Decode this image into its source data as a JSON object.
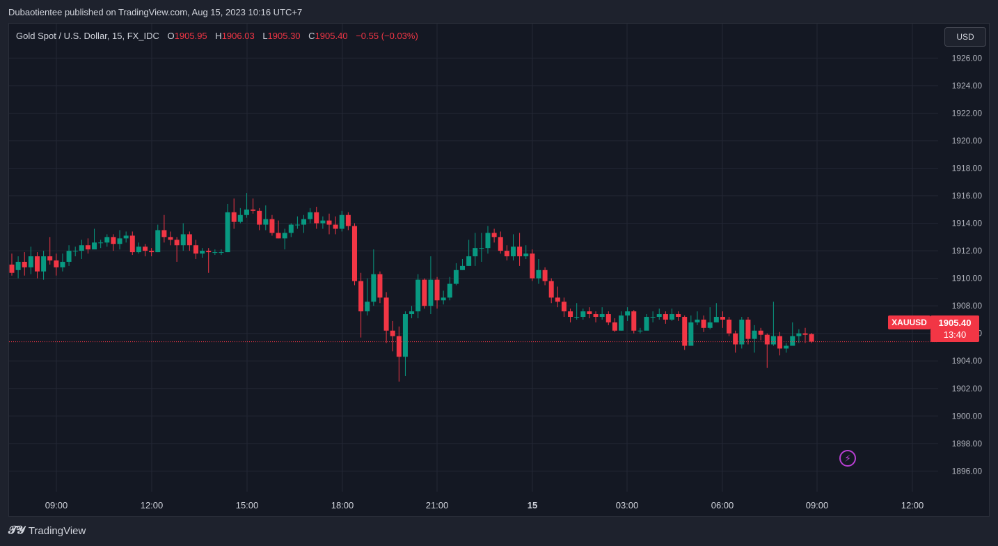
{
  "header": {
    "published": "Dubaotientee published on TradingView.com, Aug 15, 2023 10:16 UTC+7"
  },
  "legend": {
    "symbol": "Gold Spot / U.S. Dollar, 15, FX_IDC",
    "o_label": "O",
    "o": "1905.95",
    "h_label": "H",
    "h": "1906.03",
    "l_label": "L",
    "l": "1905.30",
    "c_label": "C",
    "c": "1905.40",
    "change": "−0.55 (−0.03%)"
  },
  "toolbar": {
    "currency": "USD"
  },
  "price_tag": {
    "symbol": "XAUUSD",
    "value": "1905.40",
    "countdown": "13:40"
  },
  "footer": {
    "brand": "TradingView",
    "logo_icon": "tradingview-logo-icon"
  },
  "colors": {
    "up": "#089981",
    "down": "#f23645",
    "background": "#141823",
    "grid": "#232735"
  },
  "chart_data": {
    "type": "candlestick",
    "y_ticks": [
      "1926.00",
      "1924.00",
      "1922.00",
      "1920.00",
      "1918.00",
      "1916.00",
      "1914.00",
      "1912.00",
      "1910.00",
      "1908.00",
      "1906.00",
      "1904.00",
      "1902.00",
      "1900.00",
      "1898.00",
      "1896.00"
    ],
    "x_ticks": [
      "09:00",
      "12:00",
      "15:00",
      "18:00",
      "21:00",
      "15",
      "03:00",
      "06:00",
      "09:00",
      "12:00"
    ],
    "x_tick_bold": [
      false,
      false,
      false,
      false,
      false,
      true,
      false,
      false,
      false,
      false
    ],
    "ylim": [
      1894.5,
      1928.5
    ],
    "last_price": 1905.4,
    "candles": [
      [
        1911.0,
        1910.4,
        1911.8,
        1910.2
      ],
      [
        1910.6,
        1911.2,
        1911.6,
        1910.0
      ],
      [
        1911.2,
        1910.8,
        1911.9,
        1910.2
      ],
      [
        1910.8,
        1911.6,
        1912.3,
        1910.3
      ],
      [
        1911.6,
        1910.5,
        1911.9,
        1910.0
      ],
      [
        1910.5,
        1911.6,
        1912.0,
        1909.9
      ],
      [
        1911.6,
        1911.3,
        1913.0,
        1911.0
      ],
      [
        1911.3,
        1910.8,
        1911.8,
        1910.2
      ],
      [
        1910.8,
        1911.2,
        1911.8,
        1910.5
      ],
      [
        1911.2,
        1912.0,
        1912.4,
        1910.9
      ],
      [
        1912.0,
        1912.0,
        1912.3,
        1911.6
      ],
      [
        1912.0,
        1912.4,
        1912.8,
        1911.4
      ],
      [
        1912.4,
        1912.1,
        1912.9,
        1911.8
      ],
      [
        1912.1,
        1912.6,
        1913.6,
        1912.2
      ],
      [
        1912.6,
        1912.6,
        1912.8,
        1912.2
      ],
      [
        1912.6,
        1913.0,
        1913.2,
        1912.3
      ],
      [
        1913.0,
        1912.5,
        1913.2,
        1912.0
      ],
      [
        1912.5,
        1912.9,
        1913.5,
        1912.1
      ],
      [
        1912.9,
        1913.1,
        1913.4,
        1912.6
      ],
      [
        1913.1,
        1911.9,
        1913.4,
        1911.7
      ],
      [
        1911.9,
        1912.3,
        1912.6,
        1911.8
      ],
      [
        1912.3,
        1912.0,
        1912.5,
        1911.6
      ],
      [
        1912.0,
        1911.9,
        1912.2,
        1911.6
      ],
      [
        1911.9,
        1913.5,
        1913.9,
        1911.9
      ],
      [
        1913.5,
        1913.0,
        1914.6,
        1912.6
      ],
      [
        1913.0,
        1912.8,
        1913.4,
        1912.4
      ],
      [
        1912.8,
        1912.4,
        1913.0,
        1911.2
      ],
      [
        1912.4,
        1913.2,
        1914.0,
        1912.0
      ],
      [
        1913.2,
        1912.4,
        1913.4,
        1912.0
      ],
      [
        1912.4,
        1911.8,
        1912.8,
        1911.4
      ],
      [
        1911.8,
        1912.0,
        1912.2,
        1911.5
      ],
      [
        1912.0,
        1911.9,
        1912.2,
        1910.4
      ],
      [
        1911.9,
        1911.9,
        1912.1,
        1911.7
      ],
      [
        1911.9,
        1911.9,
        1912.1,
        1911.7
      ],
      [
        1911.9,
        1914.8,
        1915.4,
        1911.9
      ],
      [
        1914.8,
        1914.1,
        1915.8,
        1913.6
      ],
      [
        1914.1,
        1914.6,
        1915.1,
        1914.0
      ],
      [
        1914.6,
        1915.0,
        1916.2,
        1914.4
      ],
      [
        1915.0,
        1914.9,
        1915.8,
        1914.7
      ],
      [
        1914.9,
        1913.9,
        1915.1,
        1913.5
      ],
      [
        1913.9,
        1914.3,
        1915.3,
        1913.5
      ],
      [
        1914.3,
        1913.3,
        1914.6,
        1913.1
      ],
      [
        1913.3,
        1912.9,
        1914.2,
        1912.9
      ],
      [
        1912.9,
        1913.3,
        1913.6,
        1912.1
      ],
      [
        1913.3,
        1913.9,
        1914.0,
        1913.0
      ],
      [
        1913.9,
        1913.9,
        1914.5,
        1913.6
      ],
      [
        1913.9,
        1914.3,
        1914.6,
        1913.3
      ],
      [
        1914.3,
        1914.8,
        1915.1,
        1914.0
      ],
      [
        1914.8,
        1914.0,
        1915.2,
        1913.6
      ],
      [
        1914.0,
        1914.2,
        1914.5,
        1913.6
      ],
      [
        1914.2,
        1913.9,
        1914.7,
        1913.2
      ],
      [
        1913.9,
        1913.6,
        1914.5,
        1913.2
      ],
      [
        1913.6,
        1914.6,
        1914.9,
        1913.4
      ],
      [
        1914.6,
        1913.8,
        1914.8,
        1913.5
      ],
      [
        1913.8,
        1909.8,
        1914.0,
        1909.5
      ],
      [
        1909.8,
        1907.6,
        1910.4,
        1905.7
      ],
      [
        1907.6,
        1908.3,
        1910.0,
        1907.3
      ],
      [
        1908.3,
        1910.3,
        1912.1,
        1908.0
      ],
      [
        1910.3,
        1908.6,
        1910.5,
        1908.2
      ],
      [
        1908.6,
        1906.2,
        1909.0,
        1905.3
      ],
      [
        1906.2,
        1905.8,
        1906.9,
        1904.7
      ],
      [
        1905.8,
        1904.3,
        1906.5,
        1902.5
      ],
      [
        1904.3,
        1907.4,
        1907.6,
        1902.9
      ],
      [
        1907.4,
        1907.6,
        1908.0,
        1907.1
      ],
      [
        1907.6,
        1909.9,
        1910.3,
        1907.1
      ],
      [
        1909.9,
        1908.0,
        1910.0,
        1907.8
      ],
      [
        1908.0,
        1909.9,
        1911.6,
        1907.4
      ],
      [
        1909.9,
        1908.4,
        1910.1,
        1907.8
      ],
      [
        1908.4,
        1908.6,
        1909.1,
        1908.1
      ],
      [
        1908.6,
        1909.6,
        1910.1,
        1908.4
      ],
      [
        1909.6,
        1910.6,
        1911.1,
        1909.5
      ],
      [
        1910.6,
        1910.9,
        1911.4,
        1910.6
      ],
      [
        1910.9,
        1911.6,
        1912.8,
        1910.9
      ],
      [
        1911.6,
        1912.2,
        1913.3,
        1910.9
      ],
      [
        1912.2,
        1912.2,
        1913.3,
        1911.2
      ],
      [
        1912.2,
        1913.3,
        1913.8,
        1911.8
      ],
      [
        1913.3,
        1913.0,
        1913.6,
        1912.6
      ],
      [
        1913.0,
        1912.0,
        1913.4,
        1911.8
      ],
      [
        1912.0,
        1911.6,
        1912.4,
        1911.3
      ],
      [
        1911.6,
        1912.3,
        1913.2,
        1911.3
      ],
      [
        1912.3,
        1911.6,
        1913.3,
        1910.9
      ],
      [
        1911.6,
        1911.8,
        1912.4,
        1911.4
      ],
      [
        1911.8,
        1910.0,
        1912.1,
        1909.8
      ],
      [
        1910.0,
        1910.6,
        1911.4,
        1909.6
      ],
      [
        1910.6,
        1909.8,
        1910.8,
        1909.5
      ],
      [
        1909.8,
        1908.6,
        1910.0,
        1908.2
      ],
      [
        1908.6,
        1908.3,
        1909.4,
        1907.9
      ],
      [
        1908.3,
        1907.6,
        1908.6,
        1907.2
      ],
      [
        1907.6,
        1907.2,
        1907.8,
        1906.8
      ],
      [
        1907.2,
        1907.2,
        1908.2,
        1907.0
      ],
      [
        1907.2,
        1907.6,
        1907.8,
        1907.0
      ],
      [
        1907.6,
        1907.4,
        1907.9,
        1907.1
      ],
      [
        1907.4,
        1907.2,
        1907.6,
        1906.8
      ],
      [
        1907.2,
        1907.4,
        1907.9,
        1907.0
      ],
      [
        1907.4,
        1906.8,
        1907.6,
        1906.6
      ],
      [
        1906.8,
        1906.2,
        1907.1,
        1906.1
      ],
      [
        1906.2,
        1907.3,
        1907.6,
        1906.2
      ],
      [
        1907.3,
        1907.6,
        1907.9,
        1906.9
      ],
      [
        1907.6,
        1906.2,
        1907.7,
        1906.0
      ],
      [
        1906.2,
        1906.2,
        1906.4,
        1906.0
      ],
      [
        1906.2,
        1907.2,
        1907.4,
        1906.6
      ],
      [
        1907.2,
        1907.2,
        1907.6,
        1906.8
      ],
      [
        1907.2,
        1907.4,
        1907.8,
        1907.0
      ],
      [
        1907.4,
        1907.0,
        1907.6,
        1906.7
      ],
      [
        1907.0,
        1907.4,
        1907.8,
        1906.9
      ],
      [
        1907.4,
        1907.2,
        1907.6,
        1906.9
      ],
      [
        1907.2,
        1905.1,
        1907.3,
        1904.8
      ],
      [
        1905.1,
        1906.8,
        1907.3,
        1906.5
      ],
      [
        1906.8,
        1907.0,
        1907.6,
        1906.6
      ],
      [
        1907.0,
        1906.4,
        1907.3,
        1906.1
      ],
      [
        1906.4,
        1906.8,
        1907.9,
        1906.3
      ],
      [
        1906.8,
        1907.2,
        1908.2,
        1906.8
      ],
      [
        1907.2,
        1907.0,
        1907.6,
        1906.4
      ],
      [
        1907.0,
        1906.0,
        1907.2,
        1905.8
      ],
      [
        1906.0,
        1905.2,
        1906.2,
        1904.6
      ],
      [
        1905.2,
        1907.0,
        1907.2,
        1904.9
      ],
      [
        1907.0,
        1905.6,
        1907.2,
        1905.2
      ],
      [
        1905.6,
        1906.2,
        1906.6,
        1904.6
      ],
      [
        1906.2,
        1905.9,
        1906.4,
        1905.5
      ],
      [
        1905.9,
        1905.2,
        1906.0,
        1903.5
      ],
      [
        1905.2,
        1905.8,
        1908.3,
        1905.1
      ],
      [
        1905.8,
        1904.9,
        1906.1,
        1904.4
      ],
      [
        1904.9,
        1905.1,
        1905.3,
        1904.6
      ],
      [
        1905.1,
        1905.8,
        1906.8,
        1905.2
      ],
      [
        1905.8,
        1906.0,
        1906.3,
        1905.3
      ],
      [
        1906.0,
        1905.9,
        1906.4,
        1905.3
      ],
      [
        1905.95,
        1905.4,
        1906.03,
        1905.3
      ]
    ]
  }
}
